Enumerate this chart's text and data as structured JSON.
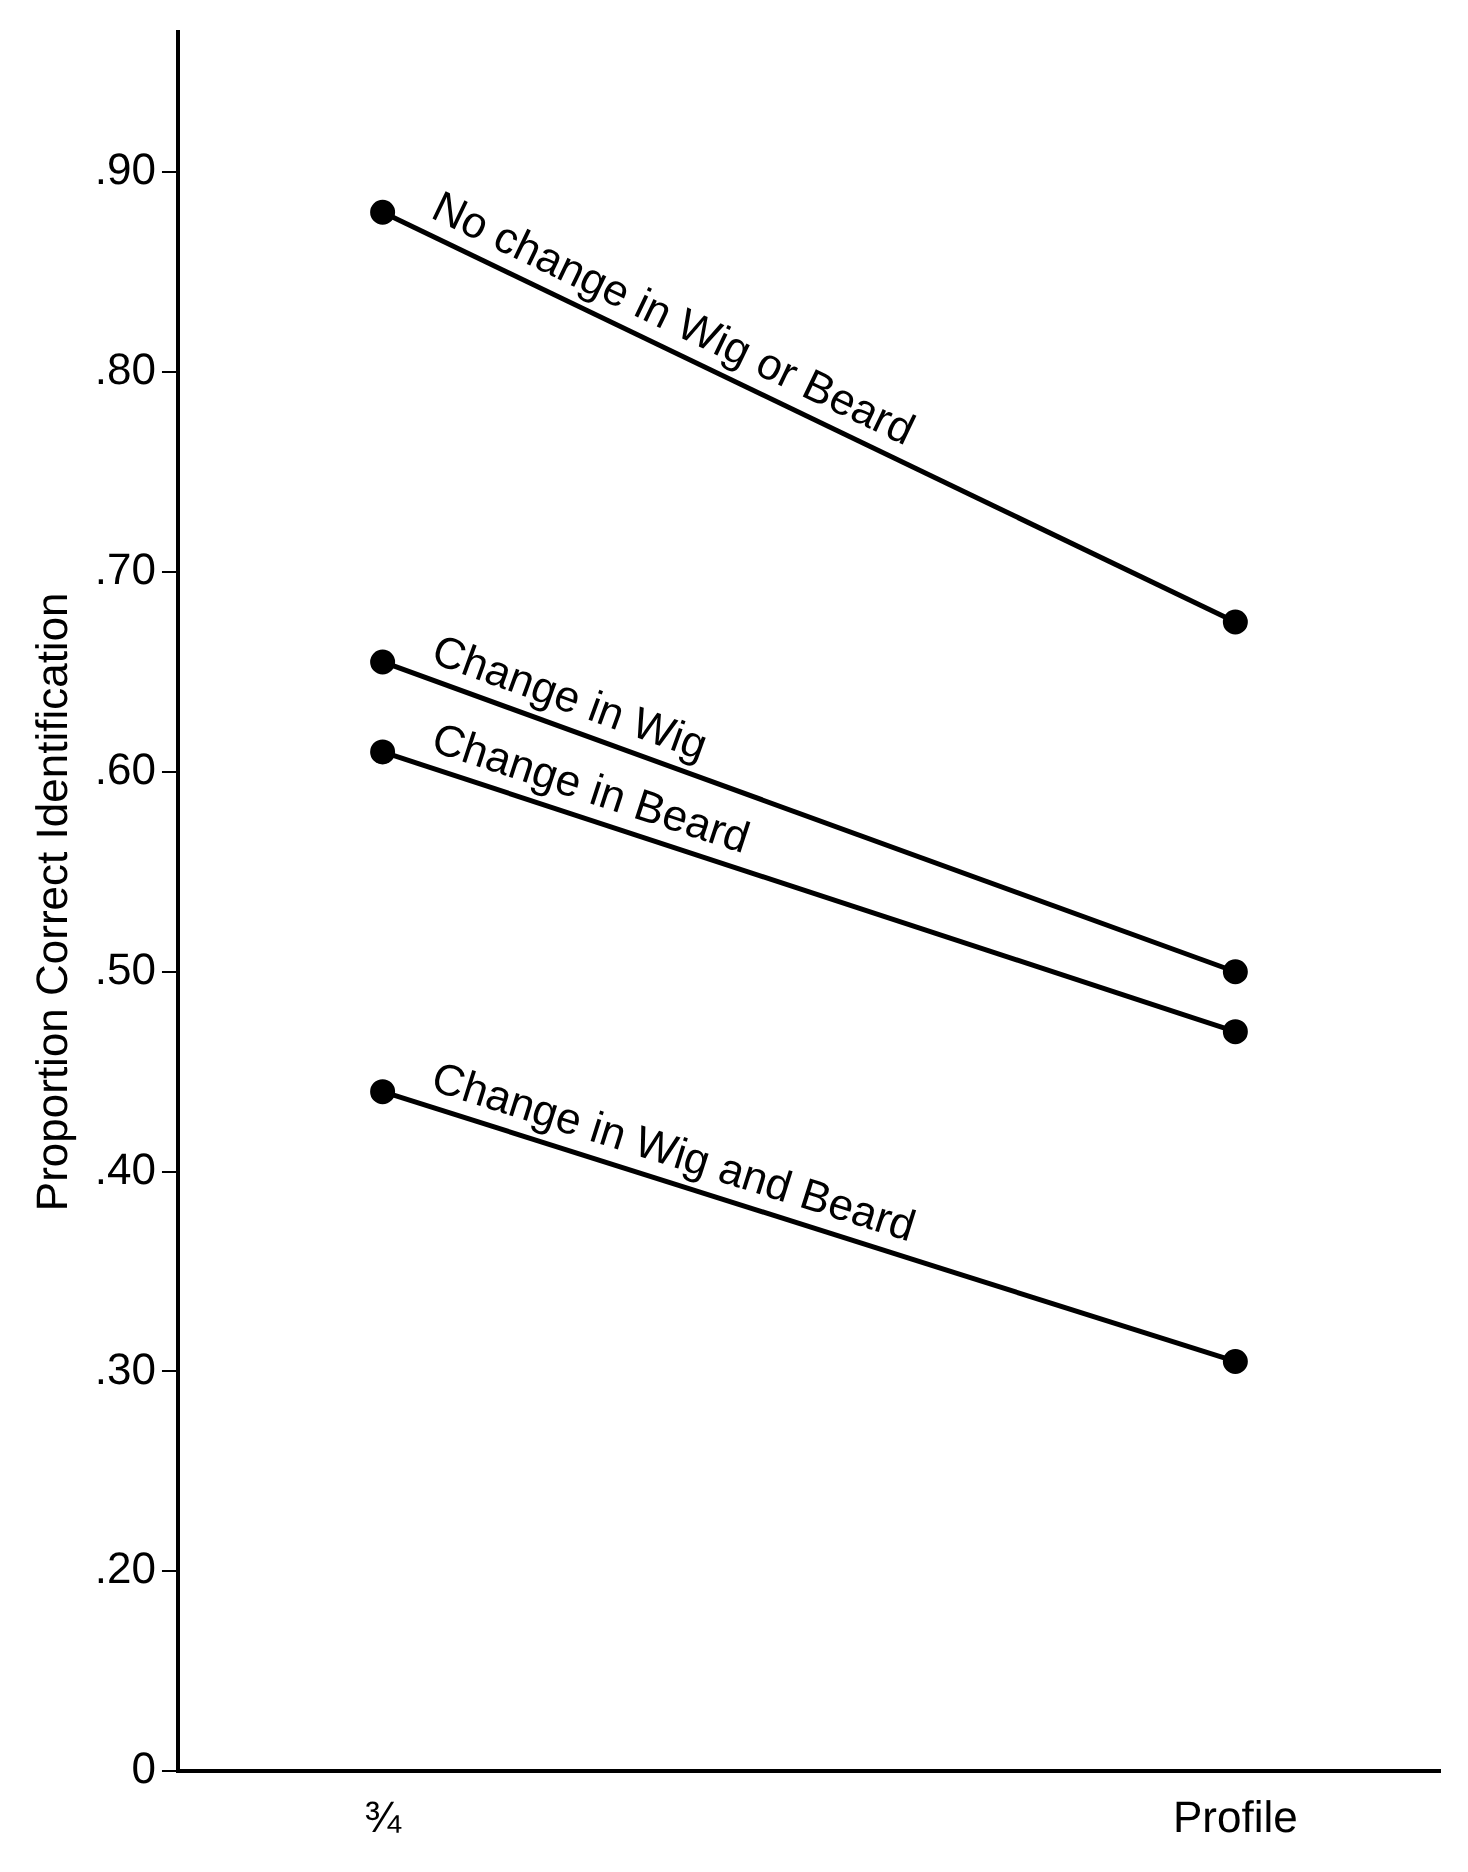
{
  "chart_data": {
    "type": "line",
    "ylabel": "Proportion Correct Identification",
    "categories": [
      "¾",
      "Profile"
    ],
    "series": [
      {
        "name": "No change in Wig or Beard",
        "color": "#000000",
        "values": [
          0.88,
          0.675
        ]
      },
      {
        "name": "Change in Wig",
        "color": "#000000",
        "values": [
          0.655,
          0.5
        ]
      },
      {
        "name": "Change in Beard",
        "color": "#000000",
        "values": [
          0.61,
          0.47
        ]
      },
      {
        "name": "Change in Wig and Beard",
        "color": "#000000",
        "values": [
          0.44,
          0.305
        ]
      }
    ],
    "ylim": [
      0.1,
      0.97
    ],
    "yticks": [
      {
        "value": 0.1,
        "label": "0"
      },
      {
        "value": 0.2,
        "label": ".20"
      },
      {
        "value": 0.3,
        "label": ".30"
      },
      {
        "value": 0.4,
        "label": ".40"
      },
      {
        "value": 0.5,
        "label": ".50"
      },
      {
        "value": 0.6,
        "label": ".60"
      },
      {
        "value": 0.7,
        "label": ".70"
      },
      {
        "value": 0.8,
        "label": ".80"
      },
      {
        "value": 0.9,
        "label": ".90"
      }
    ],
    "grid": false,
    "legend": false,
    "marker": "circle",
    "line_style": "solid"
  }
}
